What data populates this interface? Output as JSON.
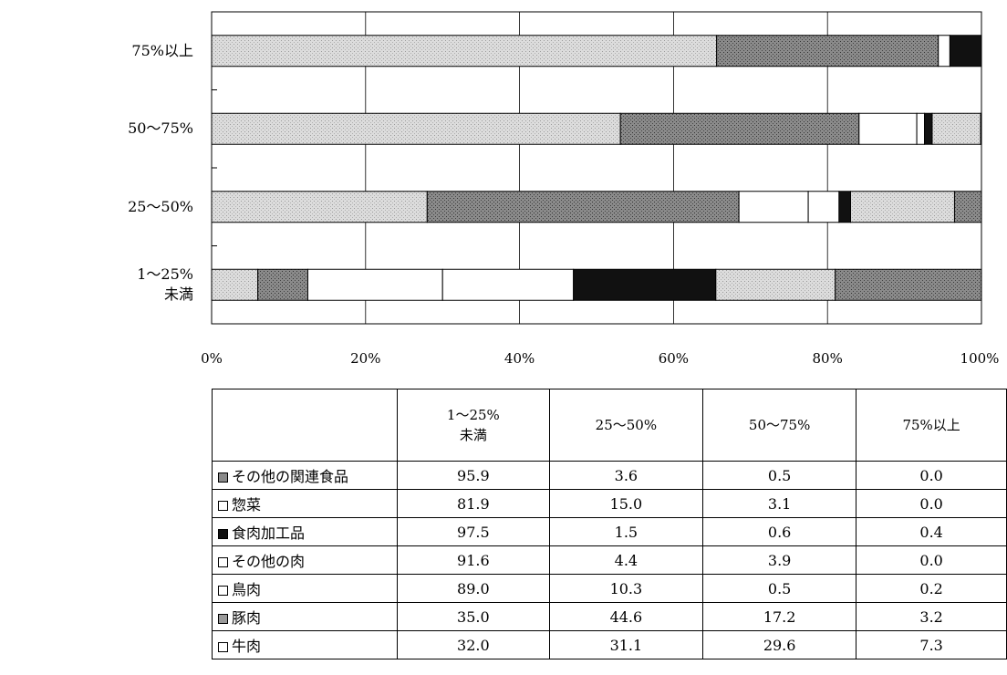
{
  "chart_data": {
    "type": "bar",
    "orientation": "horizontal",
    "stacked": true,
    "percent": true,
    "categories": [
      "75%以上",
      "50～75%",
      "25～50%",
      "1～25%\n未満"
    ],
    "x_ticks": [
      "0%",
      "20%",
      "40%",
      "60%",
      "80%",
      "100%"
    ],
    "xlim": [
      0,
      100
    ],
    "grid": true,
    "series": [
      {
        "name": "牛肉",
        "color": "#d4d4d4",
        "values": [
          65.6,
          53.1,
          28.0,
          6.0
        ]
      },
      {
        "name": "豚肉",
        "color": "#8a8a8a",
        "values": [
          28.8,
          31.0,
          40.5,
          6.5
        ]
      },
      {
        "name": "鳥肉",
        "color": "#ffffff",
        "values": [
          1.5,
          7.5,
          9.0,
          17.5
        ]
      },
      {
        "name": "その他の肉",
        "color": "#ffffff",
        "values": [
          0.0,
          1.0,
          4.0,
          17.0
        ]
      },
      {
        "name": "食肉加工品",
        "color": "#111111",
        "values": [
          4.1,
          1.0,
          1.5,
          18.5
        ]
      },
      {
        "name": "惣菜",
        "color": "#d8d8d8",
        "values": [
          0.0,
          6.3,
          13.5,
          15.5
        ]
      },
      {
        "name": "その他の関連食品",
        "color": "#9a9a9a",
        "values": [
          0.0,
          0.1,
          3.5,
          19.0
        ]
      }
    ]
  },
  "table": {
    "headers": [
      [
        "1～25%",
        "未満"
      ],
      [
        "25～50%"
      ],
      [
        "50～75%"
      ],
      [
        "75%以上"
      ]
    ],
    "rows": [
      {
        "label": "その他の関連食品",
        "swatch": "#8a8a8a",
        "values": [
          "95.9",
          "3.6",
          "0.5",
          "0.0"
        ]
      },
      {
        "label": "惣菜",
        "swatch": "#ffffff",
        "values": [
          "81.9",
          "15.0",
          "3.1",
          "0.0"
        ]
      },
      {
        "label": "食肉加工品",
        "swatch": "#111111",
        "values": [
          "97.5",
          "1.5",
          "0.6",
          "0.4"
        ]
      },
      {
        "label": "その他の肉",
        "swatch": "#ffffff",
        "values": [
          "91.6",
          "4.4",
          "3.9",
          "0.0"
        ]
      },
      {
        "label": "鳥肉",
        "swatch": "#ffffff",
        "values": [
          "89.0",
          "10.3",
          "0.5",
          "0.2"
        ]
      },
      {
        "label": "豚肉",
        "swatch": "#9a9a9a",
        "values": [
          "35.0",
          "44.6",
          "17.2",
          "3.2"
        ]
      },
      {
        "label": "牛肉",
        "swatch": "#ffffff",
        "values": [
          "32.0",
          "31.1",
          "29.6",
          "7.3"
        ]
      }
    ]
  }
}
